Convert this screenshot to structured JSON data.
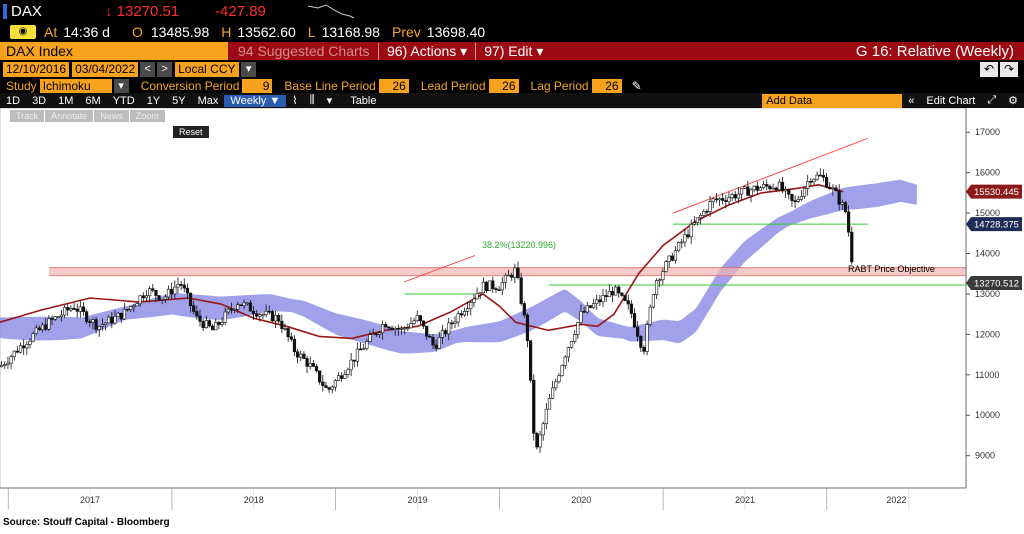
{
  "header": {
    "ticker": "DAX",
    "last": "↓ 13270.51",
    "change": "-427.89",
    "time_label": "At",
    "time": "14:36 d",
    "open_label": "O",
    "open": "13485.98",
    "high_label": "H",
    "high": "13562.60",
    "low_label": "L",
    "low": "13168.98",
    "prev_label": "Prev",
    "prev": "13698.40"
  },
  "menubar": {
    "title": "DAX Index",
    "suggested": "94 Suggested Charts",
    "actions": "96) Actions ▾",
    "edit": "97) Edit ▾",
    "chart_name": "G 16: Relative (Weekly)"
  },
  "daterow": {
    "start": "12/10/2016",
    "end": "03/04/2022",
    "currency": "Local CCY"
  },
  "studyrow": {
    "study_label": "Study",
    "study": "Ichimoku",
    "conv_label": "Conversion Period",
    "conv": "9",
    "base_label": "Base Line Period",
    "base": "26",
    "lead_label": "Lead Period",
    "lead": "26",
    "lag_label": "Lag Period",
    "lag": "26"
  },
  "periods": [
    "1D",
    "3D",
    "1M",
    "6M",
    "YTD",
    "1Y",
    "5Y",
    "Max"
  ],
  "toolbar": {
    "weekly": "Weekly ▼",
    "table": "Table",
    "add_data": "Add Data",
    "edit_chart": "Edit Chart"
  },
  "tools": [
    "Track",
    "Annotate",
    "News",
    "Zoom"
  ],
  "reset": "Reset",
  "source": "Source:  Stouff Capital - Bloomberg",
  "chart_data": {
    "type": "line",
    "x_range": [
      2016.95,
      2022.85
    ],
    "ylim": [
      8250,
      17550
    ],
    "yticks": [
      9000,
      10000,
      11000,
      12000,
      13000,
      14000,
      15000,
      16000,
      17000
    ],
    "xticks": [
      "2017",
      "2018",
      "2019",
      "2020",
      "2021",
      "2022"
    ],
    "series": [
      {
        "values": [
          [
            2016.95,
            11200
          ],
          [
            2017.1,
            11800
          ],
          [
            2017.25,
            12300
          ],
          [
            2017.4,
            12700
          ],
          [
            2017.55,
            12200
          ],
          [
            2017.7,
            12500
          ],
          [
            2017.85,
            13100
          ],
          [
            2017.95,
            12900
          ],
          [
            2018.05,
            13300
          ],
          [
            2018.15,
            12400
          ],
          [
            2018.25,
            12100
          ],
          [
            2018.4,
            12800
          ],
          [
            2018.55,
            12500
          ],
          [
            2018.65,
            12400
          ],
          [
            2018.75,
            11600
          ],
          [
            2018.85,
            11200
          ],
          [
            2018.95,
            10600
          ],
          [
            2019.05,
            11100
          ],
          [
            2019.15,
            11600
          ],
          [
            2019.3,
            12300
          ],
          [
            2019.4,
            12100
          ],
          [
            2019.5,
            12400
          ],
          [
            2019.6,
            11700
          ],
          [
            2019.75,
            12500
          ],
          [
            2019.9,
            13200
          ],
          [
            2020.0,
            13200
          ],
          [
            2020.1,
            13600
          ],
          [
            2020.17,
            12000
          ],
          [
            2020.22,
            9000
          ],
          [
            2020.3,
            10300
          ],
          [
            2020.4,
            11500
          ],
          [
            2020.5,
            12500
          ],
          [
            2020.6,
            12800
          ],
          [
            2020.7,
            13100
          ],
          [
            2020.8,
            12600
          ],
          [
            2020.88,
            11600
          ],
          [
            2020.95,
            13300
          ],
          [
            2021.05,
            13900
          ],
          [
            2021.15,
            14500
          ],
          [
            2021.3,
            15300
          ],
          [
            2021.4,
            15400
          ],
          [
            2021.55,
            15600
          ],
          [
            2021.7,
            15700
          ],
          [
            2021.8,
            15200
          ],
          [
            2021.9,
            15900
          ],
          [
            2021.97,
            15900
          ],
          [
            2022.05,
            15500
          ],
          [
            2022.12,
            15000
          ],
          [
            2022.17,
            13270
          ]
        ]
      },
      {
        "values": [
          [
            2016.95,
            12300
          ],
          [
            2017.2,
            12600
          ],
          [
            2017.5,
            12900
          ],
          [
            2017.8,
            12800
          ],
          [
            2018.1,
            12900
          ],
          [
            2018.3,
            12750
          ],
          [
            2018.5,
            12400
          ],
          [
            2018.7,
            12200
          ],
          [
            2018.9,
            11950
          ],
          [
            2019.1,
            11900
          ],
          [
            2019.3,
            12100
          ],
          [
            2019.5,
            12200
          ],
          [
            2019.7,
            12550
          ],
          [
            2019.9,
            13000
          ],
          [
            2020.0,
            12700
          ],
          [
            2020.1,
            12300
          ],
          [
            2020.3,
            12100
          ],
          [
            2020.5,
            12250
          ],
          [
            2020.6,
            12200
          ],
          [
            2020.7,
            12500
          ],
          [
            2020.85,
            13500
          ],
          [
            2021.0,
            14200
          ],
          [
            2021.2,
            14800
          ],
          [
            2021.4,
            15200
          ],
          [
            2021.6,
            15500
          ],
          [
            2021.8,
            15600
          ],
          [
            2021.95,
            15700
          ],
          [
            2022.1,
            15530
          ]
        ]
      }
    ],
    "annotations": {
      "ref_levels": [
        13650,
        13450
      ],
      "fib_label": "38.2%(13220.996)",
      "objective_label": "RABT Price Objective",
      "price_tags": [
        {
          "label": "15530.445",
          "value": 15530.445,
          "color": "#8b1a1a"
        },
        {
          "label": "14728.375",
          "value": 14728.375,
          "color": "#1e2d55"
        },
        {
          "label": "13270.512",
          "value": 13270.512,
          "color": "#3a3a3a"
        }
      ]
    },
    "grid": false,
    "legend": "none",
    "colors": {
      "price": "#111111",
      "ma": "#9c1616",
      "cloud": "#8f8fe8",
      "trend": "#ff4b4b",
      "support": "#33cc33",
      "pink": "#f3b4b4"
    }
  }
}
